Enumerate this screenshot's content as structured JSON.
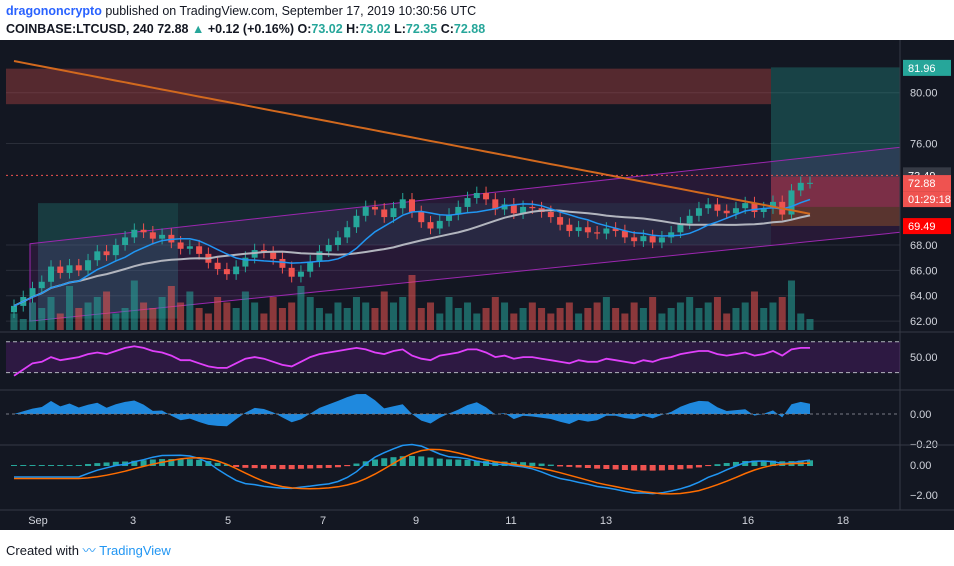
{
  "header": {
    "user": "dragononcrypto",
    "published_text": "published on TradingView.com, September 17, 2019 10:30:56 UTC",
    "symbol": "COINBASE:LTCUSD, 240",
    "last": "72.88",
    "change_arrow": "▲",
    "change": "+0.12 (+0.16%)",
    "o_label": "O:",
    "o": "73.02",
    "h_label": "H:",
    "h": "73.02",
    "l_label": "L:",
    "l": "72.35",
    "c_label": "C:",
    "c": "72.88"
  },
  "footer": {
    "created_with": "Created with",
    "brand": "TradingView"
  },
  "colors": {
    "background": "#131722",
    "candle_up": "#26a69a",
    "candle_down": "#ef5350",
    "ma_orange": "#d2691e",
    "ma_grey": "#b2b5be",
    "rsi_line": "#e040fb",
    "histogram": "#2196f3"
  },
  "chart_data": {
    "type": "candlestick",
    "x_ticks": [
      "Sep",
      "3",
      "5",
      "7",
      "9",
      "11",
      "13",
      "16",
      "18"
    ],
    "price_axis": {
      "ticks": [
        62.0,
        64.0,
        66.0,
        68.0,
        76.0,
        80.0
      ],
      "ylim": [
        61.3,
        84.0
      ],
      "tick_labels": [
        "62.00",
        "64.00",
        "66.00",
        "68.00",
        "76.00",
        "80.00"
      ],
      "top_label": "81.96",
      "current_price": "73.49",
      "last_price": "72.88",
      "countdown": "01:29:18",
      "stop_price": "69.49"
    },
    "closes": [
      63.2,
      63.9,
      64.6,
      65.1,
      66.3,
      65.8,
      66.4,
      66.0,
      66.8,
      67.5,
      67.2,
      68.0,
      68.6,
      69.2,
      69.0,
      68.5,
      68.8,
      68.2,
      67.7,
      67.9,
      67.3,
      66.6,
      66.1,
      65.7,
      66.3,
      67.0,
      67.6,
      67.4,
      66.9,
      66.2,
      65.5,
      65.9,
      66.7,
      67.5,
      68.0,
      68.6,
      69.4,
      70.3,
      71.0,
      70.8,
      70.2,
      70.9,
      71.6,
      70.6,
      69.8,
      69.3,
      69.9,
      70.4,
      71.0,
      71.7,
      72.1,
      71.6,
      70.8,
      71.2,
      70.5,
      71.0,
      70.9,
      70.6,
      70.2,
      69.6,
      69.1,
      69.4,
      69.0,
      68.9,
      69.3,
      69.1,
      68.6,
      68.3,
      68.7,
      68.2,
      68.6,
      69.0,
      69.7,
      70.3,
      70.9,
      71.2,
      70.7,
      70.5,
      70.9,
      71.3,
      70.6,
      70.9,
      71.4,
      70.4,
      72.3,
      72.9,
      72.9
    ],
    "volume": [
      3,
      2,
      5,
      4,
      6,
      3,
      8,
      4,
      5,
      6,
      7,
      3,
      4,
      9,
      5,
      4,
      6,
      8,
      5,
      7,
      4,
      3,
      6,
      5,
      4,
      7,
      5,
      3,
      6,
      4,
      5,
      8,
      6,
      4,
      3,
      5,
      4,
      6,
      5,
      4,
      7,
      5,
      6,
      10,
      4,
      5,
      3,
      6,
      4,
      5,
      3,
      4,
      6,
      5,
      3,
      4,
      5,
      4,
      3,
      4,
      5,
      3,
      4,
      5,
      6,
      4,
      3,
      5,
      4,
      6,
      3,
      4,
      5,
      6,
      4,
      5,
      6,
      3,
      4,
      5,
      7,
      4,
      5,
      6,
      9,
      3,
      2
    ],
    "rsi": {
      "ticks": [
        50.0
      ],
      "tick_labels": [
        "50.00"
      ],
      "values": [
        38,
        42,
        46,
        47,
        50,
        48,
        49,
        50,
        52,
        53,
        52,
        54,
        56,
        57,
        56,
        54,
        53,
        51,
        48,
        48,
        46,
        44,
        43,
        43,
        46,
        49,
        50,
        49,
        47,
        45,
        44,
        47,
        50,
        52,
        53,
        54,
        55,
        56,
        55,
        53,
        52,
        54,
        55,
        51,
        49,
        48,
        51,
        52,
        53,
        55,
        55,
        53,
        50,
        51,
        49,
        50,
        50,
        49,
        48,
        47,
        46,
        48,
        47,
        47,
        49,
        48,
        47,
        46,
        48,
        47,
        49,
        50,
        52,
        53,
        54,
        54,
        52,
        51,
        52,
        53,
        51,
        52,
        54,
        51,
        55,
        56,
        56
      ]
    },
    "macd": {
      "ticks": [
        0.0,
        -0.2
      ],
      "tick_labels": [
        "0.00",
        "−0.20"
      ]
    },
    "stoch": {
      "ticks": [
        0.0,
        -2.0
      ],
      "tick_labels": [
        "0.00",
        "−2.00"
      ]
    }
  }
}
